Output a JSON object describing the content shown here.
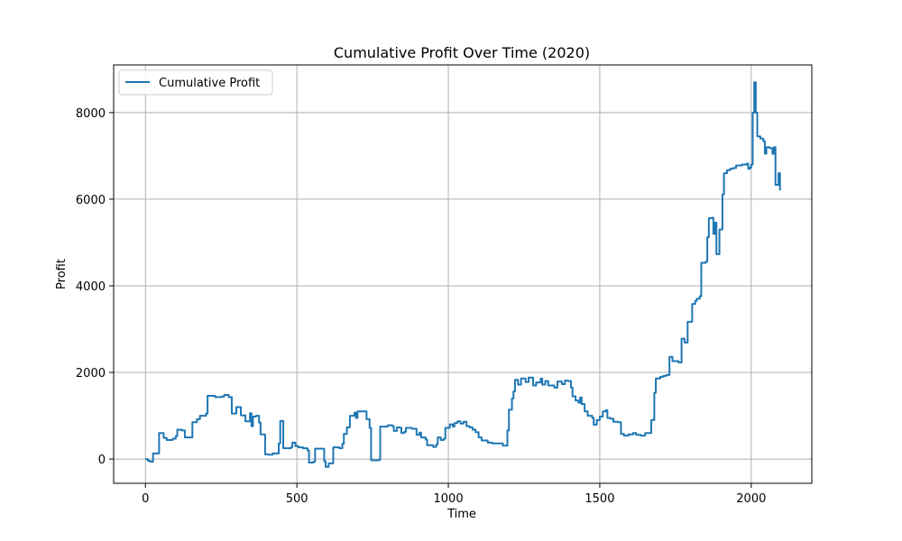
{
  "chart_data": {
    "type": "line",
    "title": "Cumulative Profit Over Time (2020)",
    "xlabel": "Time",
    "ylabel": "Profit",
    "xlim": [
      -105,
      2200
    ],
    "ylim": [
      -560,
      9100
    ],
    "x_ticks": [
      0,
      500,
      1000,
      1500,
      2000
    ],
    "x_tick_labels": [
      "0",
      "500",
      "1000",
      "1500",
      "2000"
    ],
    "y_ticks": [
      0,
      2000,
      4000,
      6000,
      8000
    ],
    "y_tick_labels": [
      "0",
      "2000",
      "4000",
      "6000",
      "8000"
    ],
    "grid": true,
    "legend_position": "upper-left",
    "colors": {
      "line": "#1f77b4"
    },
    "series": [
      {
        "name": "Cumulative Profit",
        "points": [
          [
            0,
            0
          ],
          [
            8,
            -40
          ],
          [
            15,
            -60
          ],
          [
            22,
            -60
          ],
          [
            25,
            130
          ],
          [
            40,
            130
          ],
          [
            45,
            600
          ],
          [
            55,
            600
          ],
          [
            60,
            490
          ],
          [
            70,
            440
          ],
          [
            90,
            470
          ],
          [
            100,
            530
          ],
          [
            105,
            680
          ],
          [
            120,
            660
          ],
          [
            130,
            500
          ],
          [
            150,
            500
          ],
          [
            155,
            850
          ],
          [
            170,
            920
          ],
          [
            180,
            1000
          ],
          [
            200,
            1050
          ],
          [
            205,
            1460
          ],
          [
            220,
            1460
          ],
          [
            230,
            1430
          ],
          [
            250,
            1440
          ],
          [
            260,
            1480
          ],
          [
            275,
            1430
          ],
          [
            285,
            1050
          ],
          [
            300,
            1200
          ],
          [
            315,
            1010
          ],
          [
            330,
            870
          ],
          [
            345,
            1060
          ],
          [
            350,
            760
          ],
          [
            355,
            980
          ],
          [
            365,
            1000
          ],
          [
            375,
            840
          ],
          [
            380,
            570
          ],
          [
            395,
            110
          ],
          [
            405,
            100
          ],
          [
            420,
            130
          ],
          [
            440,
            360
          ],
          [
            445,
            880
          ],
          [
            455,
            250
          ],
          [
            480,
            270
          ],
          [
            485,
            380
          ],
          [
            495,
            300
          ],
          [
            505,
            270
          ],
          [
            520,
            250
          ],
          [
            535,
            200
          ],
          [
            540,
            -80
          ],
          [
            555,
            -60
          ],
          [
            560,
            240
          ],
          [
            585,
            240
          ],
          [
            590,
            -50
          ],
          [
            595,
            -180
          ],
          [
            605,
            -100
          ],
          [
            620,
            270
          ],
          [
            640,
            250
          ],
          [
            650,
            350
          ],
          [
            655,
            580
          ],
          [
            665,
            730
          ],
          [
            675,
            1000
          ],
          [
            690,
            1070
          ],
          [
            695,
            950
          ],
          [
            700,
            1100
          ],
          [
            720,
            1100
          ],
          [
            730,
            920
          ],
          [
            740,
            720
          ],
          [
            745,
            -30
          ],
          [
            770,
            -20
          ],
          [
            775,
            750
          ],
          [
            800,
            780
          ],
          [
            815,
            760
          ],
          [
            820,
            650
          ],
          [
            830,
            730
          ],
          [
            840,
            720
          ],
          [
            845,
            600
          ],
          [
            855,
            630
          ],
          [
            860,
            720
          ],
          [
            880,
            700
          ],
          [
            895,
            560
          ],
          [
            905,
            610
          ],
          [
            910,
            500
          ],
          [
            925,
            450
          ],
          [
            930,
            320
          ],
          [
            950,
            280
          ],
          [
            960,
            340
          ],
          [
            965,
            500
          ],
          [
            975,
            440
          ],
          [
            985,
            470
          ],
          [
            990,
            720
          ],
          [
            1005,
            800
          ],
          [
            1015,
            750
          ],
          [
            1020,
            830
          ],
          [
            1030,
            870
          ],
          [
            1040,
            820
          ],
          [
            1050,
            860
          ],
          [
            1060,
            760
          ],
          [
            1070,
            730
          ],
          [
            1080,
            680
          ],
          [
            1090,
            620
          ],
          [
            1100,
            500
          ],
          [
            1110,
            430
          ],
          [
            1130,
            380
          ],
          [
            1145,
            360
          ],
          [
            1160,
            360
          ],
          [
            1180,
            310
          ],
          [
            1195,
            660
          ],
          [
            1200,
            1140
          ],
          [
            1210,
            1400
          ],
          [
            1215,
            1560
          ],
          [
            1220,
            1830
          ],
          [
            1230,
            1720
          ],
          [
            1240,
            1860
          ],
          [
            1255,
            1780
          ],
          [
            1265,
            1880
          ],
          [
            1280,
            1700
          ],
          [
            1290,
            1770
          ],
          [
            1305,
            1860
          ],
          [
            1310,
            1720
          ],
          [
            1320,
            1800
          ],
          [
            1330,
            1700
          ],
          [
            1350,
            1650
          ],
          [
            1360,
            1790
          ],
          [
            1375,
            1730
          ],
          [
            1385,
            1810
          ],
          [
            1395,
            1800
          ],
          [
            1405,
            1650
          ],
          [
            1410,
            1450
          ],
          [
            1420,
            1350
          ],
          [
            1430,
            1300
          ],
          [
            1435,
            1420
          ],
          [
            1440,
            1270
          ],
          [
            1450,
            1100
          ],
          [
            1460,
            1000
          ],
          [
            1475,
            950
          ],
          [
            1480,
            790
          ],
          [
            1490,
            900
          ],
          [
            1500,
            980
          ],
          [
            1510,
            1100
          ],
          [
            1520,
            1130
          ],
          [
            1525,
            950
          ],
          [
            1535,
            930
          ],
          [
            1545,
            860
          ],
          [
            1560,
            850
          ],
          [
            1570,
            580
          ],
          [
            1580,
            540
          ],
          [
            1595,
            570
          ],
          [
            1610,
            600
          ],
          [
            1620,
            560
          ],
          [
            1635,
            540
          ],
          [
            1650,
            600
          ],
          [
            1670,
            900
          ],
          [
            1680,
            1530
          ],
          [
            1685,
            1860
          ],
          [
            1700,
            1900
          ],
          [
            1710,
            1920
          ],
          [
            1720,
            1940
          ],
          [
            1730,
            2360
          ],
          [
            1740,
            2260
          ],
          [
            1760,
            2230
          ],
          [
            1770,
            2780
          ],
          [
            1780,
            2690
          ],
          [
            1790,
            3170
          ],
          [
            1805,
            3580
          ],
          [
            1815,
            3650
          ],
          [
            1820,
            3700
          ],
          [
            1830,
            3760
          ],
          [
            1835,
            4530
          ],
          [
            1850,
            4560
          ],
          [
            1855,
            5120
          ],
          [
            1860,
            5560
          ],
          [
            1870,
            5570
          ],
          [
            1875,
            5200
          ],
          [
            1880,
            5460
          ],
          [
            1885,
            4730
          ],
          [
            1895,
            5300
          ],
          [
            1905,
            6110
          ],
          [
            1910,
            6600
          ],
          [
            1920,
            6670
          ],
          [
            1930,
            6700
          ],
          [
            1940,
            6720
          ],
          [
            1950,
            6780
          ],
          [
            1970,
            6800
          ],
          [
            1985,
            6820
          ],
          [
            1990,
            6700
          ],
          [
            1995,
            6730
          ],
          [
            2000,
            6800
          ],
          [
            2005,
            8000
          ],
          [
            2010,
            8700
          ],
          [
            2015,
            8000
          ],
          [
            2020,
            7450
          ],
          [
            2030,
            7400
          ],
          [
            2040,
            7340
          ],
          [
            2045,
            7050
          ],
          [
            2050,
            7200
          ],
          [
            2060,
            7180
          ],
          [
            2070,
            7050
          ],
          [
            2075,
            7200
          ],
          [
            2080,
            6330
          ],
          [
            2085,
            6330
          ],
          [
            2090,
            6600
          ],
          [
            2095,
            6200
          ]
        ]
      }
    ]
  }
}
